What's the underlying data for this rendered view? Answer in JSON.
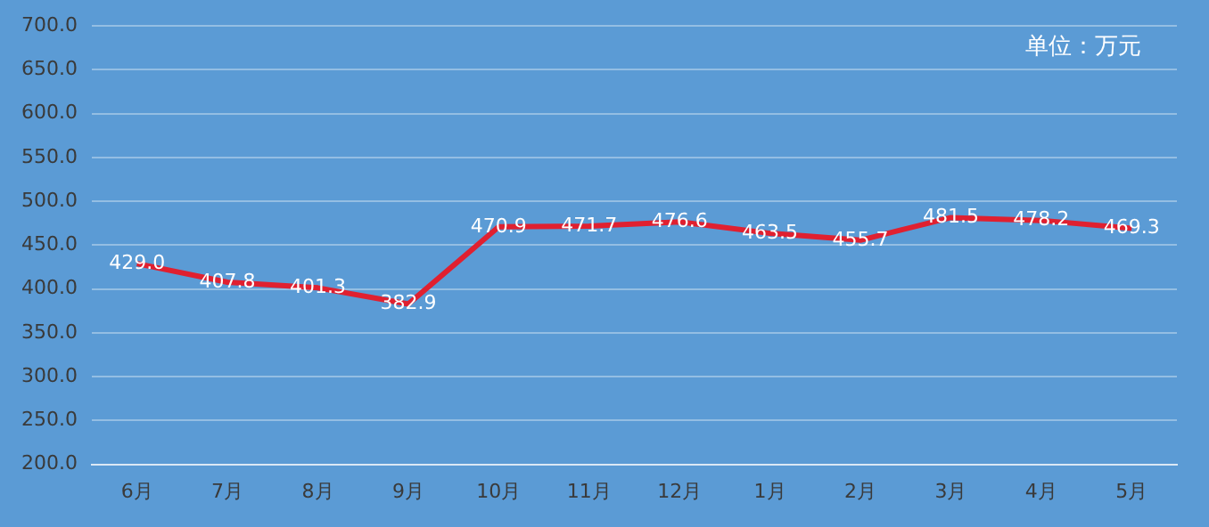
{
  "chart_data": {
    "type": "line",
    "categories": [
      "6月",
      "7月",
      "8月",
      "9月",
      "10月",
      "11月",
      "12月",
      "1月",
      "2月",
      "3月",
      "4月",
      "5月"
    ],
    "series": [
      {
        "color": "#e02030",
        "values": [
          429.0,
          407.8,
          401.3,
          382.9,
          470.9,
          471.7,
          476.6,
          463.5,
          455.7,
          481.5,
          478.2,
          469.3
        ],
        "value_labels": [
          "429.0",
          "407.8",
          "401.3",
          "382.9",
          "470.9",
          "471.7",
          "476.6",
          "463.5",
          "455.7",
          "481.5",
          "478.2",
          "469.3"
        ]
      }
    ],
    "ylim": [
      200,
      700
    ],
    "yticks": [
      {
        "value": 200,
        "label": "200.0"
      },
      {
        "value": 250,
        "label": "250.0"
      },
      {
        "value": 300,
        "label": "300.0"
      },
      {
        "value": 350,
        "label": "350.0"
      },
      {
        "value": 400,
        "label": "400.0"
      },
      {
        "value": 450,
        "label": "450.0"
      },
      {
        "value": 500,
        "label": "500.0"
      },
      {
        "value": 550,
        "label": "550.0"
      },
      {
        "value": 600,
        "label": "600.0"
      },
      {
        "value": 650,
        "label": "650.0"
      },
      {
        "value": 700,
        "label": "700.0"
      }
    ],
    "grid": "y",
    "legend": false,
    "marker": "none",
    "line_style": "solid",
    "annotations": [
      "单位：万元"
    ]
  }
}
